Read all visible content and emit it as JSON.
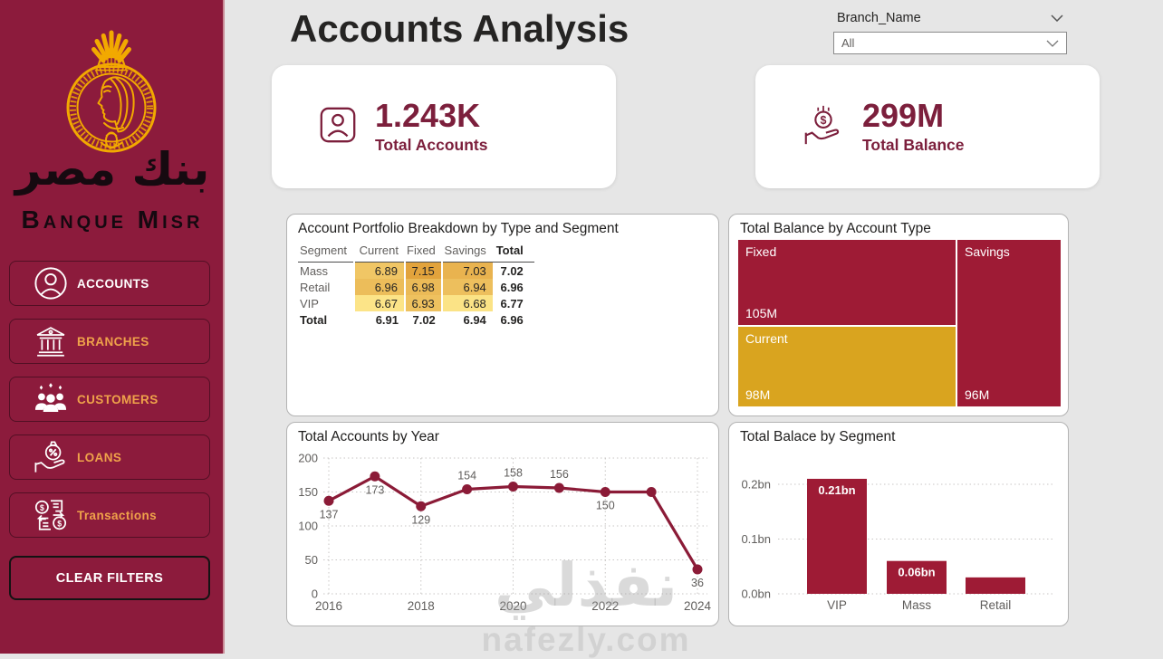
{
  "colors": {
    "sidebar_bg": "#8C1B3C",
    "brand_gold": "#F2A900",
    "menu_text_gold": "#EFA24A",
    "kpi_text": "#7C1F3C",
    "chart_red": "#9E1B35",
    "line_red": "#8B1B37",
    "tile_gold": "#D9A41F",
    "background": "#E6E6E6",
    "heat_low": "#FCE488",
    "heat_high": "#E2A33C"
  },
  "sidebar": {
    "bank_name_arabic": "بنك مصر",
    "bank_name_latin": "Banque Misr",
    "items": [
      {
        "label": "ACCOUNTS",
        "icon": "person-circle-icon",
        "white": true
      },
      {
        "label": "BRANCHES",
        "icon": "bank-icon",
        "white": false
      },
      {
        "label": "CUSTOMERS",
        "icon": "people-group-icon",
        "white": false
      },
      {
        "label": "LOANS",
        "icon": "loan-hand-icon",
        "white": false
      },
      {
        "label": "Transactions",
        "icon": "transfer-icon",
        "white": false
      }
    ],
    "clear_button": "CLEAR FILTERS"
  },
  "header": {
    "title": "Accounts Analysis",
    "slicer_label": "Branch_Name",
    "slicer_value": "All"
  },
  "kpis": [
    {
      "value": "1.243K",
      "label": "Total Accounts",
      "icon": "person-card-icon"
    },
    {
      "value": "299M",
      "label": "Total Balance",
      "icon": "hand-dollar-icon"
    }
  ],
  "watermark": {
    "arabic": "نفذلي",
    "latin": "nafezly.com"
  },
  "chart_data": [
    {
      "type": "table",
      "title": "Account Portfolio Breakdown by Type and Segment",
      "columns": [
        "Segment",
        "Current",
        "Fixed",
        "Savings",
        "Total"
      ],
      "rows": [
        [
          "Mass",
          6.89,
          7.15,
          7.03,
          7.02
        ],
        [
          "Retail",
          6.96,
          6.98,
          6.94,
          6.96
        ],
        [
          "VIP",
          6.67,
          6.93,
          6.68,
          6.77
        ],
        [
          "Total",
          6.91,
          7.02,
          6.94,
          6.96
        ]
      ],
      "heat_columns": [
        1,
        2,
        3
      ],
      "heat_min": 6.67,
      "heat_max": 7.15
    },
    {
      "type": "treemap",
      "title": "Total Balance by Account Type",
      "items": [
        {
          "name": "Fixed",
          "label": "105M",
          "value": 105,
          "color": "#9E1B35"
        },
        {
          "name": "Current",
          "label": "98M",
          "value": 98,
          "color": "#D9A41F"
        },
        {
          "name": "Savings",
          "label": "96M",
          "value": 96,
          "color": "#9E1B35"
        }
      ]
    },
    {
      "type": "line",
      "title": "Total Accounts by Year",
      "x": [
        2016,
        2017,
        2018,
        2019,
        2020,
        2021,
        2022,
        2023,
        2024
      ],
      "values": [
        137,
        173,
        129,
        154,
        158,
        156,
        150,
        150,
        36
      ],
      "point_labels": [
        "137",
        "173",
        "129",
        "154",
        "158",
        "156",
        "150",
        "",
        "36"
      ],
      "label_side": [
        "below",
        "below",
        "below",
        "above",
        "above",
        "above",
        "below",
        "",
        "below"
      ],
      "ylim": [
        0,
        200
      ],
      "yticks": [
        0,
        50,
        100,
        150,
        200
      ],
      "xticks": [
        2016,
        2018,
        2020,
        2022,
        2024
      ]
    },
    {
      "type": "bar",
      "title": "Total Balace by Segment",
      "categories": [
        "VIP",
        "Mass",
        "Retail"
      ],
      "values": [
        0.21,
        0.06,
        0.03
      ],
      "bar_labels": [
        "0.21bn",
        "0.06bn",
        ""
      ],
      "ylim": [
        0,
        0.25
      ],
      "yticks": [
        0,
        0.1,
        0.2
      ],
      "ytick_labels": [
        "0.0bn",
        "0.1bn",
        "0.2bn"
      ]
    }
  ]
}
